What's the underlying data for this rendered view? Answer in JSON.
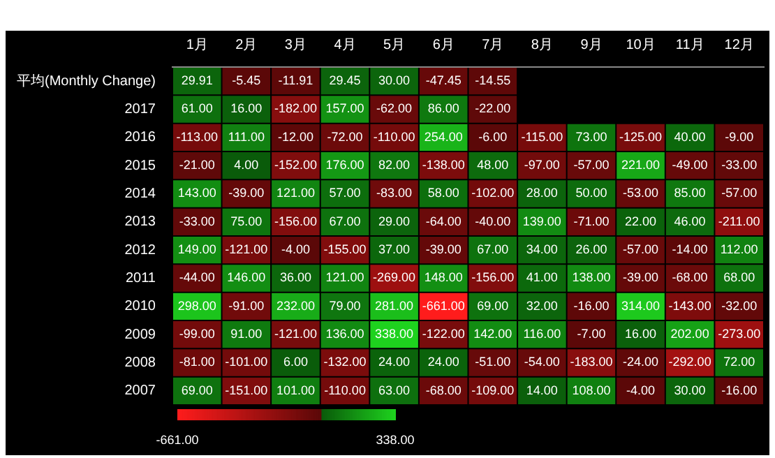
{
  "chart_data": {
    "type": "heatmap",
    "categories": [
      "1月",
      "2月",
      "3月",
      "4月",
      "5月",
      "6月",
      "7月",
      "8月",
      "9月",
      "10月",
      "11月",
      "12月"
    ],
    "y_categories": [
      "平均(Monthly Change)",
      "2017",
      "2016",
      "2015",
      "2014",
      "2013",
      "2012",
      "2011",
      "2010",
      "2009",
      "2008",
      "2007"
    ],
    "cells": [
      [
        29.91,
        -5.45,
        -11.91,
        29.45,
        30.0,
        -47.45,
        -14.55,
        null,
        null,
        null,
        null,
        null
      ],
      [
        61,
        16,
        -182,
        157,
        -62,
        86,
        -22,
        null,
        null,
        null,
        null,
        null
      ],
      [
        -113,
        111,
        -12,
        -72,
        -110,
        254,
        -6,
        -115,
        73,
        -125,
        40,
        -9
      ],
      [
        -21,
        4,
        -152,
        176,
        82,
        -138,
        48,
        -97,
        -57,
        221,
        -49,
        -33
      ],
      [
        143,
        -39,
        121,
        57,
        -83,
        58,
        -102,
        28,
        50,
        -53,
        85,
        -57
      ],
      [
        -33,
        75,
        -156,
        67,
        29,
        -64,
        -40,
        139,
        -71,
        22,
        46,
        -211
      ],
      [
        149,
        -121,
        -4,
        -155,
        37,
        -39,
        67,
        34,
        26,
        -57,
        -14,
        112
      ],
      [
        -44,
        146,
        36,
        121,
        -269,
        148,
        -156,
        41,
        138,
        -39,
        -68,
        68
      ],
      [
        298,
        -91,
        232,
        79,
        281,
        -661,
        69,
        32,
        -16,
        314,
        -143,
        -32
      ],
      [
        -99,
        91,
        -121,
        136,
        338,
        -122,
        142,
        116,
        -7,
        16,
        202,
        -273
      ],
      [
        -81,
        -101,
        6,
        -132,
        24,
        24,
        -51,
        -54,
        -183,
        -24,
        -292,
        72
      ],
      [
        69,
        -151,
        101,
        -110,
        63,
        -68,
        -109,
        14,
        108,
        -4,
        30,
        -16
      ]
    ],
    "cell_labels": [
      [
        "29.91",
        "-5.45",
        "-11.91",
        "29.45",
        "30.00",
        "-47.45",
        "-14.55",
        null,
        null,
        null,
        null,
        null
      ],
      [
        "61.00",
        "16.00",
        "-182.00",
        "157.00",
        "-62.00",
        "86.00",
        "-22.00",
        null,
        null,
        null,
        null,
        null
      ],
      [
        "-113.00",
        "111.00",
        "-12.00",
        "-72.00",
        "-110.00",
        "254.00",
        "-6.00",
        "-115.00",
        "73.00",
        "-125.00",
        "40.00",
        "-9.00"
      ],
      [
        "-21.00",
        "4.00",
        "-152.00",
        "176.00",
        "82.00",
        "-138.00",
        "48.00",
        "-97.00",
        "-57.00",
        "221.00",
        "-49.00",
        "-33.00"
      ],
      [
        "143.00",
        "-39.00",
        "121.00",
        "57.00",
        "-83.00",
        "58.00",
        "-102.00",
        "28.00",
        "50.00",
        "-53.00",
        "85.00",
        "-57.00"
      ],
      [
        "-33.00",
        "75.00",
        "-156.00",
        "67.00",
        "29.00",
        "-64.00",
        "-40.00",
        "139.00",
        "-71.00",
        "22.00",
        "46.00",
        "-211.00"
      ],
      [
        "149.00",
        "-121.00",
        "-4.00",
        "-155.00",
        "37.00",
        "-39.00",
        "67.00",
        "34.00",
        "26.00",
        "-57.00",
        "-14.00",
        "112.00"
      ],
      [
        "-44.00",
        "146.00",
        "36.00",
        "121.00",
        "-269.00",
        "148.00",
        "-156.00",
        "41.00",
        "138.00",
        "-39.00",
        "-68.00",
        "68.00"
      ],
      [
        "298.00",
        "-91.00",
        "232.00",
        "79.00",
        "281.00",
        "-661.00",
        "69.00",
        "32.00",
        "-16.00",
        "314.00",
        "-143.00",
        "-32.00"
      ],
      [
        "-99.00",
        "91.00",
        "-121.00",
        "136.00",
        "338.00",
        "-122.00",
        "142.00",
        "116.00",
        "-7.00",
        "16.00",
        "202.00",
        "-273.00"
      ],
      [
        "-81.00",
        "-101.00",
        "6.00",
        "-132.00",
        "24.00",
        "24.00",
        "-51.00",
        "-54.00",
        "-183.00",
        "-24.00",
        "-292.00",
        "72.00"
      ],
      [
        "69.00",
        "-151.00",
        "101.00",
        "-110.00",
        "63.00",
        "-68.00",
        "-109.00",
        "14.00",
        "108.00",
        "-4.00",
        "30.00",
        "-16.00"
      ]
    ],
    "clim": [
      -661,
      338
    ],
    "cticks": [
      {
        "value": -661,
        "label": "-661.00"
      },
      {
        "value": 338,
        "label": "338.00"
      }
    ]
  }
}
